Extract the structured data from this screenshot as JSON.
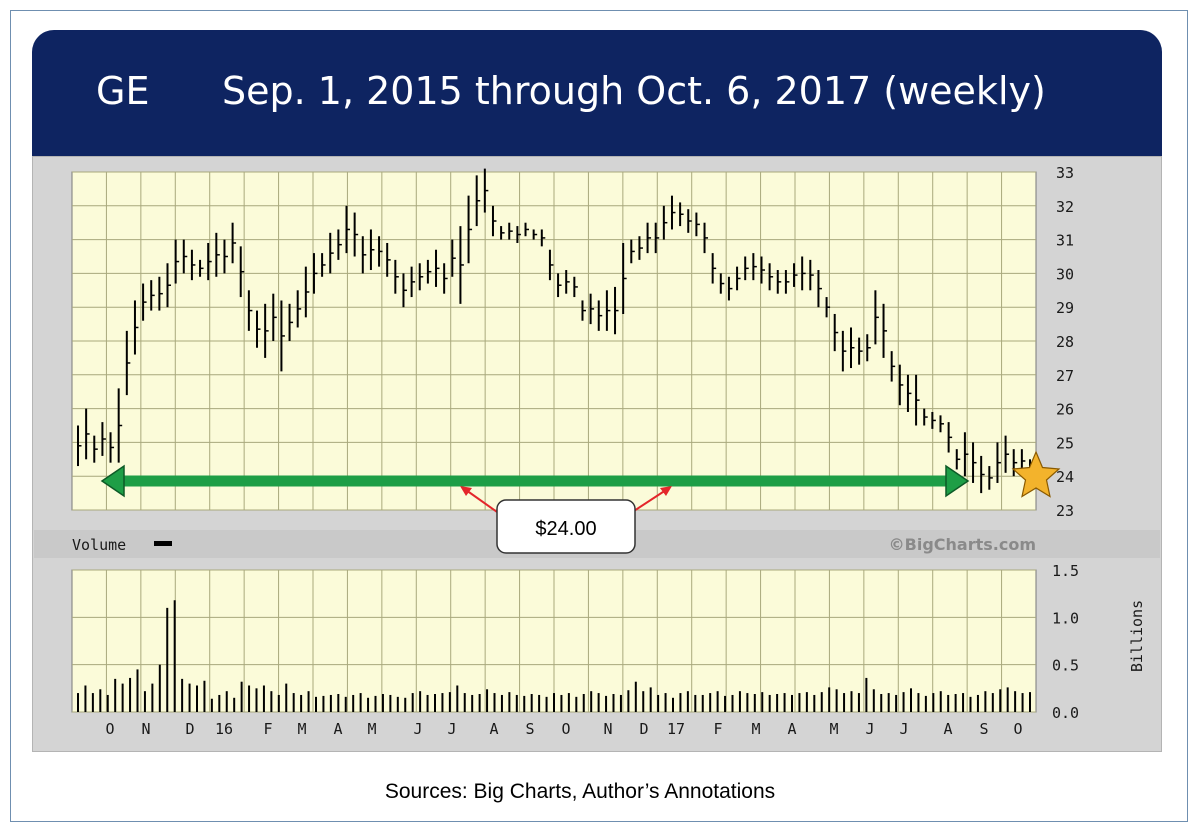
{
  "header": {
    "ticker": "GE",
    "title": "Sep. 1, 2015 through Oct. 6, 2017 (weekly)"
  },
  "footer": {
    "source": "Sources: Big Charts, Author’s Annotations"
  },
  "colors": {
    "header_bg": "#0e2461",
    "plot_bg": "#fbfbd9",
    "grid": "#a8a87c",
    "bars": "#000000",
    "annotation_arrow": "#1e9e46",
    "callout_arrow": "#e4262b",
    "star": "#f3b32c"
  },
  "chart_data": [
    {
      "type": "ohlc",
      "title": "",
      "ylim": [
        23,
        33
      ],
      "y_ticks": [
        "23",
        "24",
        "25",
        "26",
        "27",
        "28",
        "29",
        "30",
        "31",
        "32",
        "33"
      ],
      "watermark": "©BigCharts.com",
      "reference_line": {
        "value": 24.0,
        "label": "$24.00",
        "style": "double-headed arrow"
      },
      "marker": {
        "shape": "star",
        "value": 24.3,
        "position": "last bar"
      },
      "series": [
        {
          "values": [
            {
              "high": 25.5,
              "low": 24.3
            },
            {
              "high": 26.0,
              "low": 24.5
            },
            {
              "high": 25.2,
              "low": 24.4
            },
            {
              "high": 25.6,
              "low": 24.6
            },
            {
              "high": 25.3,
              "low": 24.4
            },
            {
              "high": 26.6,
              "low": 24.4
            },
            {
              "high": 28.3,
              "low": 26.4
            },
            {
              "high": 29.2,
              "low": 27.6
            },
            {
              "high": 29.7,
              "low": 28.6
            },
            {
              "high": 29.8,
              "low": 28.9
            },
            {
              "high": 29.9,
              "low": 28.9
            },
            {
              "high": 30.3,
              "low": 29.0
            },
            {
              "high": 31.0,
              "low": 29.7
            },
            {
              "high": 31.0,
              "low": 30.0
            },
            {
              "high": 30.7,
              "low": 29.8
            },
            {
              "high": 30.4,
              "low": 29.9
            },
            {
              "high": 30.9,
              "low": 29.8
            },
            {
              "high": 31.2,
              "low": 29.9
            },
            {
              "high": 31.0,
              "low": 30.0
            },
            {
              "high": 31.5,
              "low": 30.3
            },
            {
              "high": 30.8,
              "low": 29.3
            },
            {
              "high": 29.5,
              "low": 28.3
            },
            {
              "high": 28.9,
              "low": 27.8
            },
            {
              "high": 29.1,
              "low": 27.5
            },
            {
              "high": 29.4,
              "low": 28.0
            },
            {
              "high": 29.2,
              "low": 27.1
            },
            {
              "high": 29.1,
              "low": 28.0
            },
            {
              "high": 29.5,
              "low": 28.4
            },
            {
              "high": 30.2,
              "low": 28.7
            },
            {
              "high": 30.6,
              "low": 29.4
            },
            {
              "high": 30.6,
              "low": 29.9
            },
            {
              "high": 31.2,
              "low": 30.0
            },
            {
              "high": 31.3,
              "low": 30.4
            },
            {
              "high": 32.0,
              "low": 30.6
            },
            {
              "high": 31.8,
              "low": 30.5
            },
            {
              "high": 31.1,
              "low": 30.0
            },
            {
              "high": 31.3,
              "low": 30.1
            },
            {
              "high": 31.1,
              "low": 30.2
            },
            {
              "high": 30.9,
              "low": 29.9
            },
            {
              "high": 30.4,
              "low": 29.4
            },
            {
              "high": 30.0,
              "low": 29.0
            },
            {
              "high": 30.2,
              "low": 29.3
            },
            {
              "high": 30.3,
              "low": 29.5
            },
            {
              "high": 30.4,
              "low": 29.7
            },
            {
              "high": 30.7,
              "low": 29.6
            },
            {
              "high": 30.3,
              "low": 29.4
            },
            {
              "high": 31.0,
              "low": 29.9
            },
            {
              "high": 31.4,
              "low": 29.1
            },
            {
              "high": 32.3,
              "low": 30.3
            },
            {
              "high": 32.9,
              "low": 31.4
            },
            {
              "high": 33.1,
              "low": 31.8
            },
            {
              "high": 32.0,
              "low": 31.1
            },
            {
              "high": 31.4,
              "low": 31.0
            },
            {
              "high": 31.5,
              "low": 31.0
            },
            {
              "high": 31.4,
              "low": 30.9
            },
            {
              "high": 31.5,
              "low": 31.1
            },
            {
              "high": 31.3,
              "low": 31.0
            },
            {
              "high": 31.3,
              "low": 30.8
            },
            {
              "high": 30.7,
              "low": 29.8
            },
            {
              "high": 30.0,
              "low": 29.3
            },
            {
              "high": 30.1,
              "low": 29.4
            },
            {
              "high": 29.9,
              "low": 29.3
            },
            {
              "high": 29.2,
              "low": 28.6
            },
            {
              "high": 29.4,
              "low": 28.5
            },
            {
              "high": 29.2,
              "low": 28.3
            },
            {
              "high": 29.5,
              "low": 28.3
            },
            {
              "high": 29.6,
              "low": 28.2
            },
            {
              "high": 30.9,
              "low": 28.8
            },
            {
              "high": 31.0,
              "low": 30.3
            },
            {
              "high": 31.1,
              "low": 30.4
            },
            {
              "high": 31.5,
              "low": 30.6
            },
            {
              "high": 31.5,
              "low": 30.6
            },
            {
              "high": 32.0,
              "low": 31.0
            },
            {
              "high": 32.3,
              "low": 31.3
            },
            {
              "high": 32.1,
              "low": 31.4
            },
            {
              "high": 31.9,
              "low": 31.2
            },
            {
              "high": 31.8,
              "low": 31.1
            },
            {
              "high": 31.5,
              "low": 30.6
            },
            {
              "high": 30.6,
              "low": 29.7
            },
            {
              "high": 30.0,
              "low": 29.4
            },
            {
              "high": 29.9,
              "low": 29.2
            },
            {
              "high": 30.2,
              "low": 29.5
            },
            {
              "high": 30.5,
              "low": 29.8
            },
            {
              "high": 30.6,
              "low": 29.8
            },
            {
              "high": 30.5,
              "low": 29.7
            },
            {
              "high": 30.3,
              "low": 29.5
            },
            {
              "high": 30.1,
              "low": 29.4
            },
            {
              "high": 30.1,
              "low": 29.4
            },
            {
              "high": 30.3,
              "low": 29.6
            },
            {
              "high": 30.5,
              "low": 29.5
            },
            {
              "high": 30.4,
              "low": 29.5
            },
            {
              "high": 30.1,
              "low": 29.0
            },
            {
              "high": 29.3,
              "low": 28.7
            },
            {
              "high": 28.8,
              "low": 27.7
            },
            {
              "high": 28.3,
              "low": 27.1
            },
            {
              "high": 28.4,
              "low": 27.2
            },
            {
              "high": 28.1,
              "low": 27.3
            },
            {
              "high": 28.2,
              "low": 27.4
            },
            {
              "high": 29.5,
              "low": 27.9
            },
            {
              "high": 29.1,
              "low": 27.5
            },
            {
              "high": 27.7,
              "low": 26.8
            },
            {
              "high": 27.3,
              "low": 26.1
            },
            {
              "high": 27.0,
              "low": 25.9
            },
            {
              "high": 27.0,
              "low": 25.5
            },
            {
              "high": 26.0,
              "low": 25.5
            },
            {
              "high": 25.9,
              "low": 25.4
            },
            {
              "high": 25.8,
              "low": 25.3
            },
            {
              "high": 25.6,
              "low": 24.7
            },
            {
              "high": 24.8,
              "low": 24.2
            },
            {
              "high": 25.3,
              "low": 24.0
            },
            {
              "high": 25.0,
              "low": 23.8
            },
            {
              "high": 24.6,
              "low": 23.5
            },
            {
              "high": 24.3,
              "low": 23.6
            },
            {
              "high": 25.0,
              "low": 23.8
            },
            {
              "high": 25.2,
              "low": 24.1
            },
            {
              "high": 24.8,
              "low": 24.0
            },
            {
              "high": 24.8,
              "low": 24.1
            },
            {
              "high": 24.5,
              "low": 24.2
            }
          ]
        }
      ]
    },
    {
      "type": "bar",
      "title": "Volume",
      "ylabel": "Billions",
      "ylim": [
        0,
        1.5
      ],
      "y_ticks": [
        "1.5",
        "1.0",
        "0.5",
        "0.0"
      ],
      "x_tick_labels": [
        "O",
        "N",
        "D",
        "16",
        "F",
        "M",
        "A",
        "M",
        "J",
        "J",
        "A",
        "S",
        "O",
        "N",
        "D",
        "17",
        "F",
        "M",
        "A",
        "M",
        "J",
        "J",
        "A",
        "S",
        "O"
      ],
      "values": [
        0.2,
        0.28,
        0.2,
        0.24,
        0.18,
        0.35,
        0.3,
        0.36,
        0.45,
        0.22,
        0.3,
        0.5,
        1.1,
        1.18,
        0.35,
        0.3,
        0.28,
        0.33,
        0.14,
        0.18,
        0.22,
        0.15,
        0.32,
        0.28,
        0.25,
        0.28,
        0.22,
        0.18,
        0.3,
        0.2,
        0.18,
        0.22,
        0.16,
        0.17,
        0.18,
        0.19,
        0.16,
        0.18,
        0.2,
        0.15,
        0.17,
        0.19,
        0.18,
        0.16,
        0.15,
        0.2,
        0.22,
        0.18,
        0.19,
        0.2,
        0.21,
        0.28,
        0.2,
        0.18,
        0.19,
        0.24,
        0.2,
        0.18,
        0.21,
        0.18,
        0.17,
        0.19,
        0.18,
        0.16,
        0.2,
        0.18,
        0.2,
        0.16,
        0.19,
        0.22,
        0.2,
        0.17,
        0.19,
        0.18,
        0.23,
        0.32,
        0.22,
        0.26,
        0.18,
        0.2,
        0.15,
        0.2,
        0.22,
        0.18,
        0.18,
        0.2,
        0.22,
        0.17,
        0.18,
        0.22,
        0.2,
        0.19,
        0.21,
        0.18,
        0.19,
        0.2,
        0.18,
        0.2,
        0.21,
        0.18,
        0.21,
        0.26,
        0.24,
        0.2,
        0.22,
        0.2,
        0.36,
        0.24,
        0.19,
        0.2,
        0.18,
        0.21,
        0.25,
        0.2,
        0.17,
        0.2,
        0.22,
        0.18,
        0.19,
        0.2,
        0.16,
        0.18,
        0.22,
        0.2,
        0.24,
        0.26,
        0.22,
        0.2,
        0.21
      ]
    }
  ]
}
